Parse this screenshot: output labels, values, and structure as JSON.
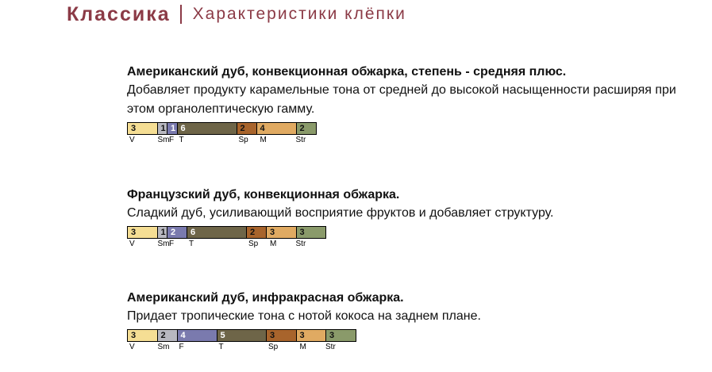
{
  "header": {
    "brand": "Классика",
    "subtitle": "Характеристики клёпки",
    "brand_color": "#8B3A46",
    "separator_color": "#8B3A46"
  },
  "axis_labels": [
    "V",
    "Sm",
    "F",
    "T",
    "Sp",
    "M",
    "Str"
  ],
  "segment_colors": {
    "V": "#F5DE94",
    "Sm": "#B8B8C0",
    "F": "#7A7AAE",
    "T": "#6E6548",
    "Sp": "#A8642C",
    "M": "#E0AA62",
    "Str": "#8A9A6A"
  },
  "sections": [
    {
      "title": "Американский дуб, конвекционная обжарка, степень - средняя плюс.",
      "description": "Добавляет продукту карамельные тона от средней до высокой насыщенности расширяя при этом органолептическую гамму.",
      "values": [
        3,
        1,
        1,
        6,
        2,
        4,
        2
      ]
    },
    {
      "title": "Французский дуб, конвекционная обжарка.",
      "description": "Сладкий дуб, усиливающий восприятие фруктов и добавляет структуру.",
      "values": [
        3,
        1,
        2,
        6,
        2,
        3,
        3
      ]
    },
    {
      "title": "Американский дуб, инфракрасная обжарка.",
      "description": "Придает тропические тона с нотой кокоса на заднем плане.",
      "values": [
        3,
        2,
        4,
        5,
        3,
        3,
        3
      ]
    }
  ]
}
